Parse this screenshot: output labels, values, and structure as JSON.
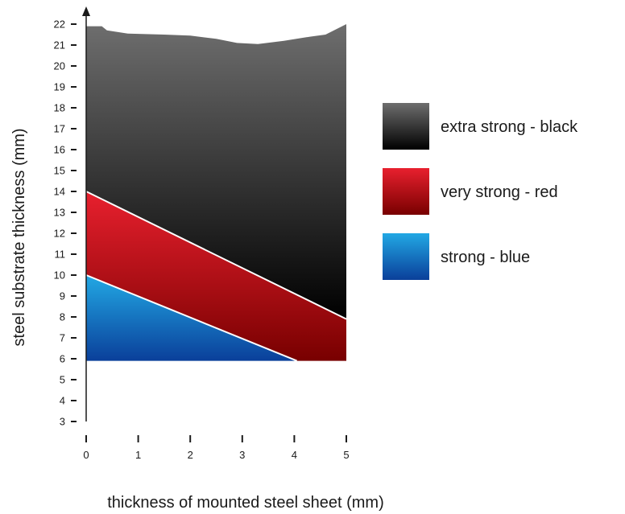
{
  "chart_data": {
    "type": "area",
    "xlabel": "thickness of mounted steel sheet (mm)",
    "ylabel": "steel substrate thickness (mm)",
    "xlim": [
      0,
      5
    ],
    "ylim": [
      3,
      22
    ],
    "x_ticks": [
      "0",
      "1",
      "2",
      "3",
      "4",
      "5"
    ],
    "y_ticks": [
      "3",
      "4",
      "5",
      "6",
      "7",
      "8",
      "9",
      "10",
      "11",
      "12",
      "13",
      "14",
      "15",
      "16",
      "17",
      "18",
      "19",
      "20",
      "21",
      "22"
    ],
    "grid": false,
    "legend_position": "right",
    "series": [
      {
        "name": "extra strong - black",
        "color_top": "#6e6e6e",
        "color_bottom": "#000000",
        "upper": [
          [
            0,
            21.9
          ],
          [
            0.3,
            21.9
          ],
          [
            0.4,
            21.7
          ],
          [
            0.8,
            21.55
          ],
          [
            1.5,
            21.5
          ],
          [
            2.0,
            21.45
          ],
          [
            2.5,
            21.3
          ],
          [
            2.9,
            21.1
          ],
          [
            3.3,
            21.05
          ],
          [
            3.8,
            21.2
          ],
          [
            4.3,
            21.4
          ],
          [
            4.6,
            21.5
          ],
          [
            5.0,
            22.0
          ]
        ],
        "lower": [
          [
            0,
            14
          ],
          [
            5,
            7.9
          ]
        ]
      },
      {
        "name": "very strong - red",
        "color_top": "#e8202e",
        "color_bottom": "#780000",
        "upper": [
          [
            0,
            14
          ],
          [
            5,
            7.9
          ]
        ],
        "lower": [
          [
            0,
            10
          ],
          [
            4.05,
            5.9
          ],
          [
            5,
            5.9
          ]
        ]
      },
      {
        "name": "strong - blue",
        "color_top": "#22a8e4",
        "color_bottom": "#0a3f9a",
        "upper": [
          [
            0,
            10
          ],
          [
            4.05,
            5.9
          ]
        ],
        "lower": [
          [
            0,
            5.9
          ],
          [
            4.05,
            5.9
          ]
        ]
      }
    ]
  }
}
